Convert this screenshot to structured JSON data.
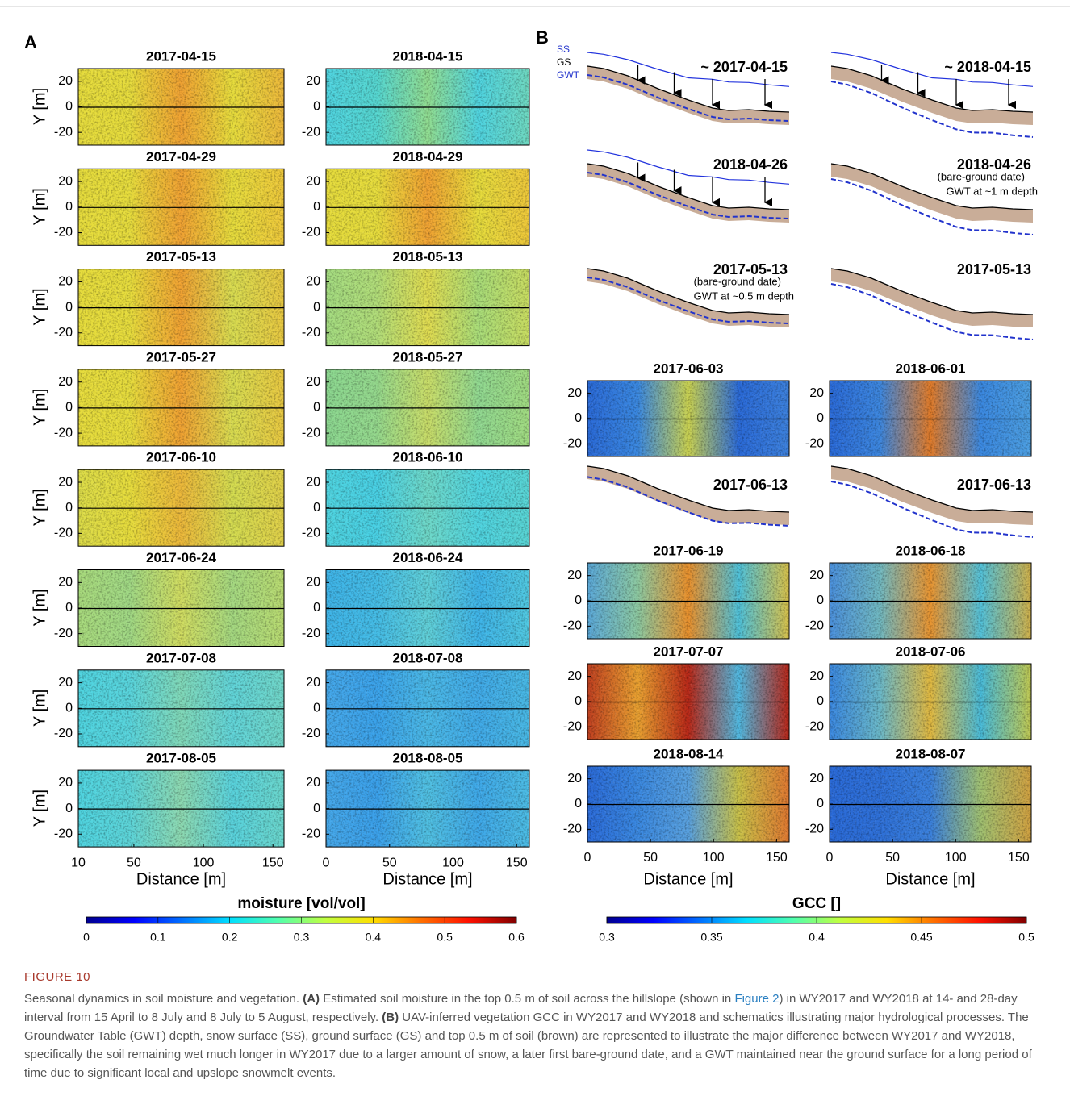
{
  "panel_a": {
    "label": "A",
    "y_label": "Y [m]",
    "x_label": "Distance [m]",
    "ylim": [
      -30,
      30
    ],
    "yticks": [
      20,
      0,
      -20
    ],
    "xlim": [
      [
        10,
        158
      ],
      [
        0,
        160
      ]
    ],
    "xticks": [
      [
        10,
        50,
        100,
        150
      ],
      [
        0,
        50,
        100,
        150
      ]
    ],
    "maps": [
      [
        "2017-04-15",
        "2018-04-15"
      ],
      [
        "2017-04-29",
        "2018-04-29"
      ],
      [
        "2017-05-13",
        "2018-05-13"
      ],
      [
        "2017-05-27",
        "2018-05-27"
      ],
      [
        "2017-06-10",
        "2018-06-10"
      ],
      [
        "2017-06-24",
        "2018-06-24"
      ],
      [
        "2017-07-08",
        "2018-07-08"
      ],
      [
        "2017-08-05",
        "2018-08-05"
      ]
    ],
    "colorbar": {
      "title": "moisture [vol/vol]",
      "ticks": [
        0,
        0.1,
        0.2,
        0.3,
        0.4,
        0.5,
        0.6
      ]
    }
  },
  "panel_b": {
    "label": "B",
    "schematic_legend": [
      "SS",
      "GS",
      "GWT"
    ],
    "schematics": [
      [
        {
          "title": "~ 2017-04-15",
          "notes": []
        },
        {
          "title": "~ 2018-04-15",
          "notes": []
        }
      ],
      [
        {
          "title": "2018-04-26",
          "notes": []
        },
        {
          "title": "2018-04-26",
          "notes": [
            "(bare-ground date)",
            "GWT at ~1 m depth"
          ]
        }
      ],
      [
        {
          "title": "2017-05-13",
          "notes": [
            "(bare-ground date)",
            "GWT at ~0.5 m depth"
          ]
        },
        {
          "title": "2017-05-13",
          "notes": []
        }
      ],
      [
        {
          "title": "2017-06-13",
          "notes": []
        },
        {
          "title": "2017-06-13",
          "notes": []
        }
      ]
    ],
    "ylim": [
      -30,
      30
    ],
    "yticks": [
      20,
      0,
      -20
    ],
    "xlim": [
      0,
      160
    ],
    "xticks": [
      0,
      50,
      100,
      150
    ],
    "x_label": "Distance [m]",
    "maps": [
      [
        "2017-06-03",
        "2018-06-01"
      ],
      [
        "2017-06-19",
        "2018-06-18"
      ],
      [
        "2017-07-07",
        "2018-07-06"
      ],
      [
        "2018-08-14",
        "2018-08-07"
      ]
    ],
    "colorbar": {
      "title": "GCC []",
      "ticks": [
        0.3,
        0.35,
        0.4,
        0.45,
        0.5
      ]
    }
  },
  "caption": {
    "label": "FIGURE 10",
    "parts": [
      "Seasonal dynamics in soil moisture and vegetation. ",
      "(A)",
      " Estimated soil moisture in the top 0.5 m of soil across the hillslope (shown in ",
      "Figure 2",
      ") in WY2017 and WY2018 at 14- and 28-day interval from 15 April to 8 July and 8 July to 5 August, respectively. ",
      "(B)",
      " UAV-inferred vegetation GCC in WY2017 and WY2018 and schematics illustrating major hydrological processes. The Groundwater Table (GWT) depth, snow surface (SS), ground surface (GS) and top 0.5 m of soil (brown) are represented to illustrate the major difference between WY2017 and WY2018, specifically the soil remaining wet much longer in WY2017 due to a larger amount of snow, a later first bare-ground date, and a GWT maintained near the ground surface for a long period of time due to significant local and upslope snowmelt events."
    ]
  }
}
